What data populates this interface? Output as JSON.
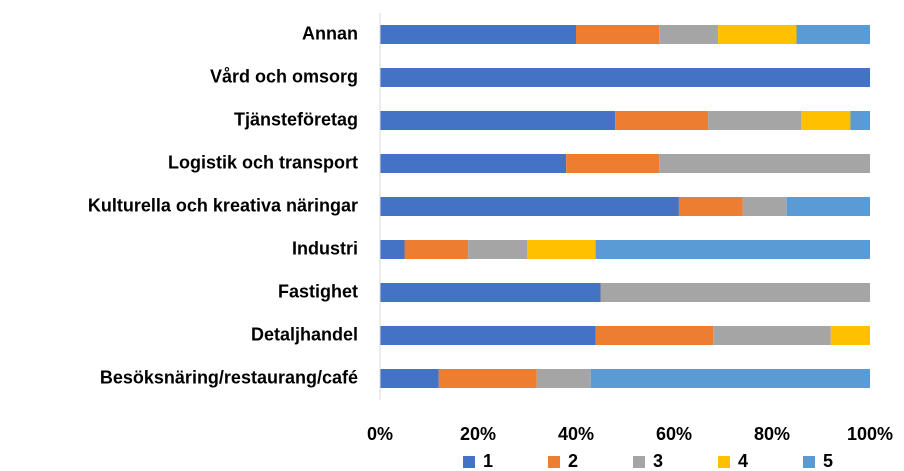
{
  "chart_data": {
    "type": "stacked_bar_horizontal",
    "categories": [
      "Annan",
      "Vård och omsorg",
      "Tjänsteföretag",
      "Logistik och transport",
      "Kulturella och kreativa näringar",
      "Industri",
      "Fastighet",
      "Detaljhandel",
      "Besöksnäring/restaurang/café"
    ],
    "series": [
      {
        "name": "1",
        "color": "#4472c4",
        "values": [
          40,
          100,
          48,
          38,
          61,
          5,
          45,
          44,
          12
        ]
      },
      {
        "name": "2",
        "color": "#ed7d31",
        "values": [
          17,
          0,
          19,
          19,
          13,
          13,
          0,
          24,
          20
        ]
      },
      {
        "name": "3",
        "color": "#a5a5a5",
        "values": [
          12,
          0,
          19,
          43,
          9,
          12,
          55,
          24,
          11
        ]
      },
      {
        "name": "4",
        "color": "#ffc000",
        "values": [
          16,
          0,
          10,
          0,
          0,
          14,
          0,
          8,
          0
        ]
      },
      {
        "name": "5",
        "color": "#5b9bd5",
        "values": [
          15,
          0,
          4,
          0,
          17,
          56,
          0,
          0,
          57
        ]
      }
    ],
    "xlim": [
      0,
      100
    ],
    "xticks": [
      {
        "value": 0,
        "label": "0%"
      },
      {
        "value": 20,
        "label": "20%"
      },
      {
        "value": 40,
        "label": "40%"
      },
      {
        "value": 60,
        "label": "60%"
      },
      {
        "value": 80,
        "label": "80%"
      },
      {
        "value": 100,
        "label": "100%"
      }
    ],
    "grid": false,
    "legend": "bottom"
  }
}
